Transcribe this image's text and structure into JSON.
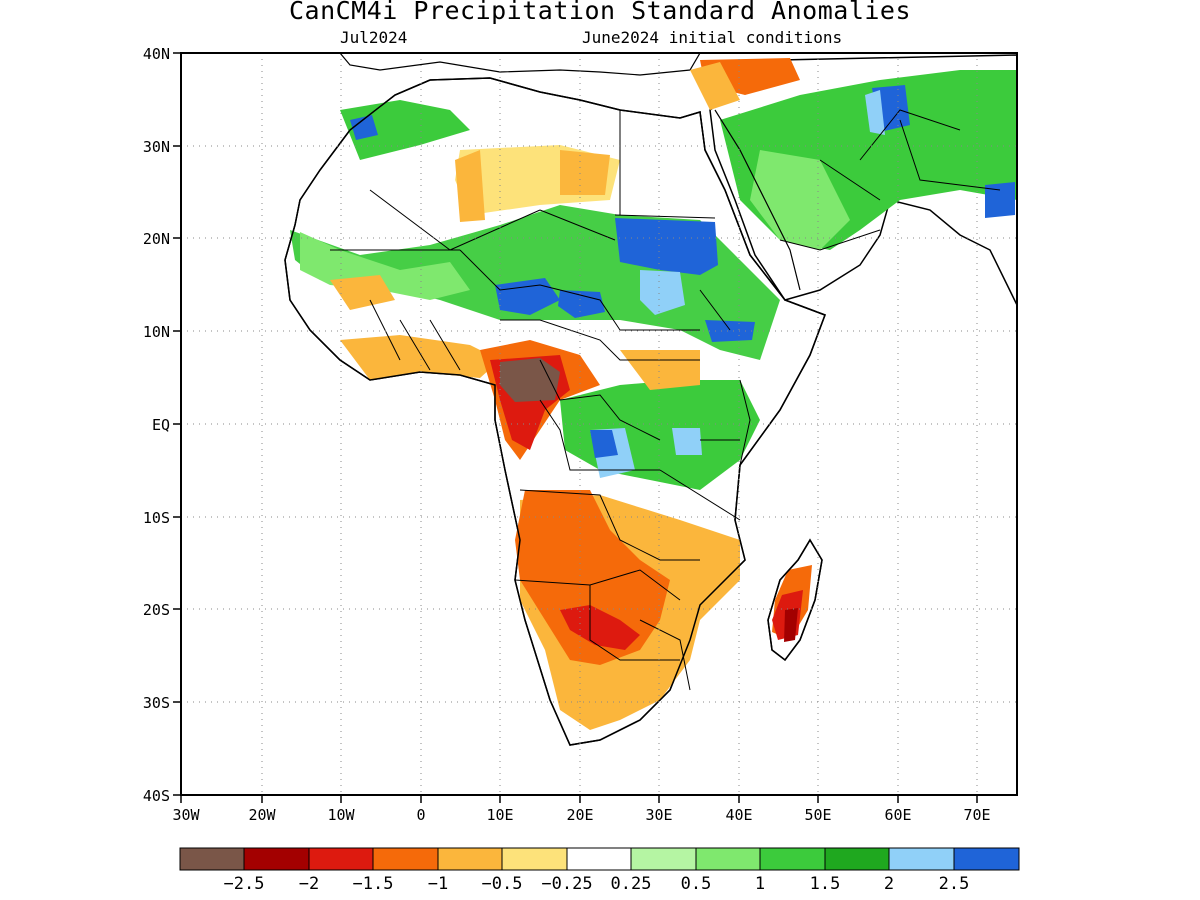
{
  "title": "CanCM4i Precipitation Standard Anomalies",
  "subtitle_left": "Jul2024",
  "subtitle_right": "June2024 initial conditions",
  "lat_labels": [
    "40N",
    "30N",
    "20N",
    "10N",
    "EQ",
    "10S",
    "20S",
    "30S",
    "40S"
  ],
  "lon_labels": [
    "30W",
    "20W",
    "10W",
    "0",
    "10E",
    "20E",
    "30E",
    "40E",
    "50E",
    "60E",
    "70E"
  ],
  "colors": {
    "c_m3": "#7a5648",
    "c_m25": "#a30000",
    "c_m2": "#dd1a0f",
    "c_m15": "#f56a0a",
    "c_m1": "#fbb63c",
    "c_m05": "#fde27a",
    "neutral": "#ffffff",
    "c_p025": "#b5f5a3",
    "c_p05": "#7fe86e",
    "c_p1": "#3ccb3c",
    "c_p15": "#1fa81f",
    "c_p2": "#90d0f8",
    "c_p25": "#1f64d8"
  },
  "legend": {
    "colors": [
      "#7a5648",
      "#a30000",
      "#dd1a0f",
      "#f56a0a",
      "#fbb63c",
      "#fde27a",
      "#ffffff",
      "#b5f5a3",
      "#7fe86e",
      "#3ccb3c",
      "#1fa81f",
      "#90d0f8",
      "#1f64d8"
    ],
    "labels": [
      "−2.5",
      "−2",
      "−1.5",
      "−1",
      "−0.5",
      "−0.25",
      "0.25",
      "0.5",
      "1",
      "1.5",
      "2",
      "2.5"
    ]
  }
}
